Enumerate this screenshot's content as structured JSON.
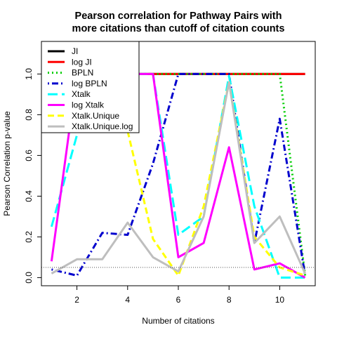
{
  "chart_data": {
    "type": "line",
    "title": "Pearson correlation for Pathway Pairs with",
    "subtitle": "more citations than cutoff of citation counts",
    "xlabel": "Number of citations",
    "ylabel": "Pearson Correlation p-value",
    "xlim": [
      0.6,
      11.4
    ],
    "ylim": [
      -0.04,
      1.16
    ],
    "x_ticks": [
      2,
      4,
      6,
      8,
      10
    ],
    "y_ticks": [
      0.0,
      0.2,
      0.4,
      0.6,
      0.8,
      1.0
    ],
    "x_tick_labels": [
      "2",
      "4",
      "6",
      "8",
      "10"
    ],
    "y_tick_labels": [
      "0.0",
      "0.2",
      "0.4",
      "0.6",
      "0.8",
      "1.0"
    ],
    "x": [
      1,
      2,
      3,
      4,
      5,
      6,
      7,
      8,
      9,
      10,
      11
    ],
    "cutoff_line": 0.05,
    "legend_position": "top-left",
    "series": [
      {
        "name": "JI",
        "color": "#000000",
        "dash": "solid",
        "values": [
          null,
          null,
          1.0,
          1.0,
          1.0,
          1.0,
          1.0,
          1.0,
          1.0,
          1.0,
          1.0
        ]
      },
      {
        "name": "log JI",
        "color": "#ff0000",
        "dash": "solid",
        "values": [
          null,
          null,
          1.0,
          1.0,
          1.0,
          1.0,
          1.0,
          1.0,
          1.0,
          1.0,
          1.0
        ]
      },
      {
        "name": "BPLN",
        "color": "#00cd00",
        "dash": "dotted",
        "values": [
          null,
          null,
          1.0,
          1.0,
          1.0,
          1.0,
          1.0,
          1.0,
          1.0,
          1.0,
          0.01
        ]
      },
      {
        "name": "log BPLN",
        "color": "#0000cd",
        "dash": "dotdash",
        "values": [
          0.04,
          0.01,
          0.22,
          0.21,
          0.56,
          1.0,
          1.0,
          1.0,
          0.17,
          0.78,
          0.01
        ]
      },
      {
        "name": "Xtalk",
        "color": "#00ffff",
        "dash": "longdash",
        "values": [
          0.25,
          0.7,
          1.0,
          1.0,
          1.0,
          0.21,
          0.3,
          0.99,
          0.35,
          0.0,
          0.0
        ]
      },
      {
        "name": "log Xtalk",
        "color": "#ff00ff",
        "dash": "solid",
        "values": [
          0.08,
          1.0,
          1.0,
          1.0,
          1.0,
          0.1,
          0.17,
          0.64,
          0.04,
          0.07,
          0.0
        ]
      },
      {
        "name": "Xtalk.Unique",
        "color": "#ffff00",
        "dash": "dashed",
        "values": [
          null,
          null,
          null,
          0.72,
          0.19,
          0.01,
          0.35,
          0.96,
          0.2,
          0.05,
          0.01
        ]
      },
      {
        "name": "Xtalk.Unique.log",
        "color": "#bebebe",
        "dash": "solid",
        "values": [
          0.02,
          0.09,
          0.09,
          0.27,
          0.1,
          0.03,
          0.3,
          0.96,
          0.17,
          0.3,
          0.02
        ]
      }
    ]
  }
}
